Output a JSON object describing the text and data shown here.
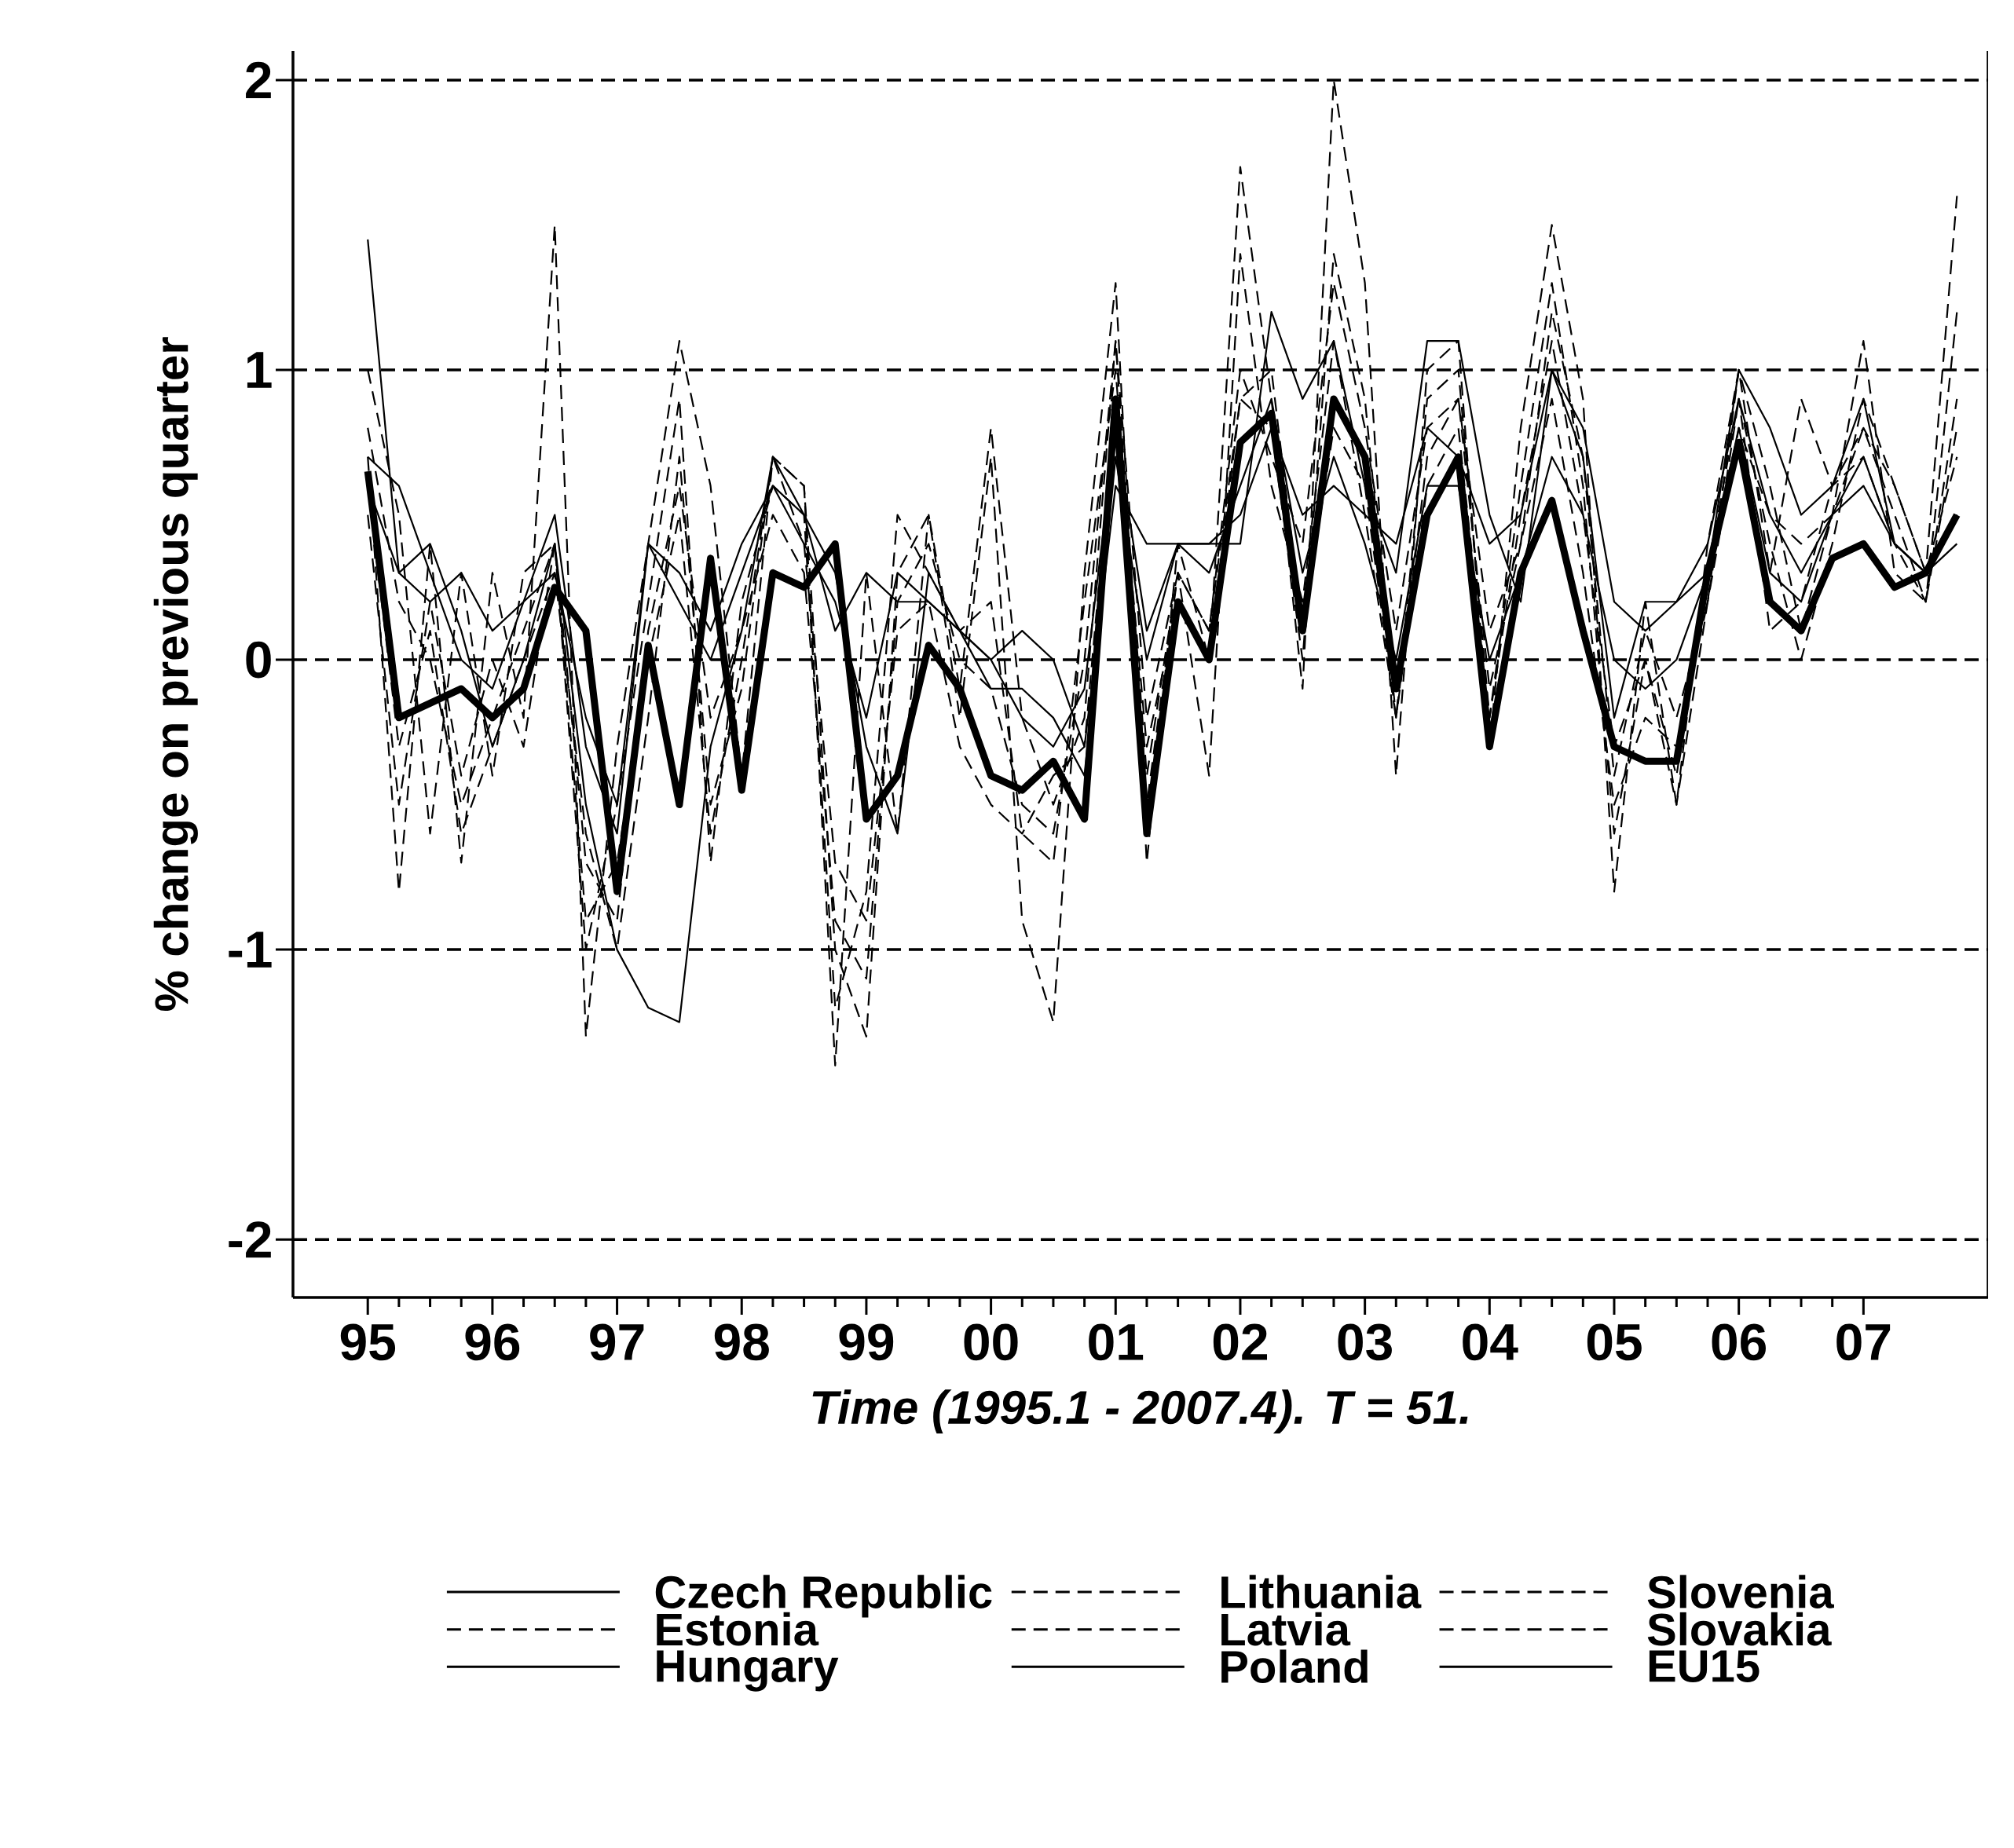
{
  "chart_data": {
    "type": "line",
    "xlabel": "Time (1995.1 - 2007.4). T = 51.",
    "ylabel": "% change on previous quarter",
    "x": [
      1995,
      1995.25,
      1995.5,
      1995.75,
      1996,
      1996.25,
      1996.5,
      1996.75,
      1997,
      1997.25,
      1997.5,
      1997.75,
      1998,
      1998.25,
      1998.5,
      1998.75,
      1999,
      1999.25,
      1999.5,
      1999.75,
      2000,
      2000.25,
      2000.5,
      2000.75,
      2001,
      2001.25,
      2001.5,
      2001.75,
      2002,
      2002.25,
      2002.5,
      2002.75,
      2003,
      2003.25,
      2003.5,
      2003.75,
      2004,
      2004.25,
      2004.5,
      2004.75,
      2005,
      2005.25,
      2005.5,
      2005.75,
      2006,
      2006.25,
      2006.5,
      2006.75,
      2007,
      2007.25,
      2007.5,
      2007.75
    ],
    "xlim": [
      1994.4,
      2008.0
    ],
    "xticks": [
      {
        "value": 1995,
        "label": "95"
      },
      {
        "value": 1996,
        "label": "96"
      },
      {
        "value": 1997,
        "label": "97"
      },
      {
        "value": 1998,
        "label": "98"
      },
      {
        "value": 1999,
        "label": "99"
      },
      {
        "value": 2000,
        "label": "00"
      },
      {
        "value": 2001,
        "label": "01"
      },
      {
        "value": 2002,
        "label": "02"
      },
      {
        "value": 2003,
        "label": "03"
      },
      {
        "value": 2004,
        "label": "04"
      },
      {
        "value": 2005,
        "label": "05"
      },
      {
        "value": 2006,
        "label": "06"
      },
      {
        "value": 2007,
        "label": "07"
      }
    ],
    "ylim": [
      -2.2,
      2.1
    ],
    "yticks": [
      -2,
      -1,
      0,
      1,
      2
    ],
    "grid": "y",
    "legend": "bottom",
    "series": [
      {
        "name": "Czech Republic",
        "color": "#000000",
        "line_style": "solid",
        "values": [
          1.45,
          0.3,
          0.4,
          0.1,
          -0.3,
          0.0,
          0.4,
          -0.5,
          -1.0,
          -1.2,
          -1.25,
          -0.3,
          0.1,
          0.7,
          0.5,
          0.3,
          -0.3,
          -0.6,
          0.3,
          0.1,
          0.0,
          -0.2,
          -0.3,
          -0.1,
          0.8,
          0.1,
          0.4,
          0.4,
          0.4,
          1.2,
          0.9,
          1.1,
          0.6,
          0.3,
          1.1,
          1.1,
          0.5,
          0.2,
          1.0,
          0.7,
          -0.2,
          0.2,
          0.2,
          0.3,
          1.0,
          0.8,
          0.5,
          0.6,
          0.9,
          0.4,
          0.3,
          0.5
        ]
      },
      {
        "name": "Estonia",
        "color": "#000000",
        "line_style": "dashed",
        "values": [
          0.7,
          -0.8,
          0.4,
          -0.7,
          0.3,
          -0.2,
          1.5,
          -1.3,
          -0.3,
          0.4,
          1.1,
          0.6,
          -0.4,
          0.7,
          0.6,
          -1.4,
          0.3,
          -0.6,
          0.5,
          -0.2,
          0.7,
          -0.9,
          -1.25,
          0.3,
          1.3,
          -0.7,
          0.4,
          0.0,
          1.7,
          0.9,
          -0.1,
          2.0,
          1.3,
          -0.4,
          1.0,
          1.1,
          -0.3,
          0.8,
          1.5,
          0.9,
          -0.8,
          0.2,
          -0.5,
          0.4,
          1.0,
          0.3,
          0.9,
          0.6,
          0.8,
          0.6,
          0.3,
          1.6
        ]
      },
      {
        "name": "Hungary",
        "color": "#000000",
        "line_style": "solid",
        "values": [
          0.6,
          0.3,
          0.2,
          0.3,
          0.1,
          0.2,
          0.5,
          -0.3,
          -0.6,
          0.4,
          0.3,
          0.1,
          0.4,
          0.6,
          0.5,
          0.1,
          0.3,
          0.2,
          0.2,
          0.1,
          0.0,
          0.1,
          0.0,
          -0.3,
          0.6,
          0.4,
          0.4,
          0.4,
          0.5,
          0.8,
          0.5,
          0.6,
          0.5,
          0.4,
          0.8,
          0.7,
          0.4,
          0.5,
          1.0,
          0.8,
          0.2,
          0.1,
          0.2,
          0.4,
          0.9,
          0.5,
          0.3,
          0.5,
          0.6,
          0.4,
          0.3,
          0.4
        ]
      },
      {
        "name": "Lithuania",
        "color": "#000000",
        "line_style": "dashed",
        "values": [
          1.0,
          0.5,
          -0.6,
          0.3,
          -0.4,
          0.3,
          0.4,
          -1.0,
          -0.5,
          0.2,
          0.9,
          -0.7,
          0.2,
          0.6,
          0.5,
          -1.2,
          -0.8,
          0.5,
          0.3,
          0.1,
          0.2,
          -0.6,
          -0.7,
          0.2,
          1.0,
          -0.4,
          0.3,
          -0.4,
          1.4,
          0.6,
          0.2,
          1.1,
          0.5,
          -0.2,
          0.9,
          1.0,
          -0.2,
          0.6,
          1.3,
          0.6,
          -0.6,
          0.0,
          -0.4,
          0.3,
          0.9,
          0.1,
          0.2,
          0.6,
          0.7,
          0.4,
          0.2,
          1.2
        ]
      },
      {
        "name": "Latvia",
        "color": "#000000",
        "line_style": "dashed",
        "values": [
          0.8,
          0.2,
          0.0,
          -0.5,
          -0.2,
          0.1,
          0.4,
          -0.7,
          -0.9,
          0.1,
          0.6,
          -0.2,
          0.1,
          0.5,
          0.3,
          -0.9,
          -1.1,
          0.2,
          0.4,
          0.0,
          -0.1,
          -0.5,
          -0.6,
          0.0,
          1.1,
          -0.2,
          0.3,
          0.1,
          1.0,
          0.7,
          0.4,
          1.3,
          0.8,
          0.1,
          0.8,
          0.9,
          0.1,
          0.4,
          1.2,
          0.7,
          -0.4,
          0.1,
          -0.2,
          0.2,
          0.8,
          0.5,
          0.4,
          0.5,
          0.8,
          0.5,
          0.2,
          0.9
        ]
      },
      {
        "name": "Poland",
        "color": "#000000",
        "line_style": "solid",
        "values": [
          0.7,
          0.6,
          0.3,
          0.0,
          -0.1,
          0.2,
          0.3,
          -0.2,
          -0.5,
          0.4,
          0.2,
          0.0,
          0.3,
          0.6,
          0.4,
          0.2,
          -0.2,
          0.3,
          0.2,
          0.1,
          -0.1,
          -0.1,
          -0.2,
          -0.4,
          0.7,
          0.0,
          0.4,
          0.3,
          0.6,
          0.9,
          0.3,
          0.7,
          0.4,
          0.0,
          0.6,
          0.6,
          0.0,
          0.3,
          0.7,
          0.5,
          0.0,
          -0.1,
          0.0,
          0.3,
          0.8,
          0.3,
          0.2,
          0.5,
          0.7,
          0.4,
          0.3,
          0.5
        ]
      },
      {
        "name": "Slovenia",
        "color": "#000000",
        "line_style": "dashed",
        "values": [
          0.5,
          -0.5,
          0.2,
          -0.4,
          0.0,
          -0.3,
          0.4,
          -0.9,
          -0.7,
          0.0,
          0.5,
          -0.6,
          0.0,
          0.7,
          0.4,
          -0.7,
          -0.9,
          0.1,
          0.2,
          -0.3,
          -0.5,
          -0.6,
          -0.4,
          -0.3,
          0.9,
          -0.3,
          0.2,
          0.0,
          0.9,
          1.0,
          0.1,
          0.8,
          0.6,
          -0.2,
          0.7,
          0.9,
          -0.1,
          0.4,
          0.9,
          0.3,
          -0.5,
          -0.2,
          -0.3,
          0.2,
          1.0,
          0.6,
          0.1,
          0.5,
          1.1,
          0.3,
          0.2,
          0.8
        ]
      },
      {
        "name": "Slovakia",
        "color": "#000000",
        "line_style": "dashed",
        "values": [
          0.6,
          -0.3,
          0.1,
          -0.6,
          -0.3,
          0.0,
          0.3,
          -0.6,
          -1.0,
          -0.2,
          0.7,
          -0.5,
          -0.1,
          0.7,
          0.6,
          -1.0,
          -1.3,
          0.3,
          0.5,
          -0.1,
          0.8,
          -0.2,
          -0.5,
          -0.2,
          1.1,
          -0.5,
          0.3,
          0.1,
          0.9,
          0.8,
          0.0,
          1.4,
          0.9,
          -0.2,
          0.6,
          0.8,
          -0.2,
          0.5,
          1.1,
          0.5,
          -0.3,
          0.0,
          -0.5,
          0.2,
          0.9,
          0.4,
          0.0,
          0.4,
          0.9,
          0.6,
          0.3,
          0.7
        ]
      },
      {
        "name": "EU15",
        "color": "#000000",
        "line_style": "solid",
        "values": [
          0.65,
          -0.2,
          -0.15,
          -0.1,
          -0.2,
          -0.1,
          0.25,
          0.1,
          -0.8,
          0.05,
          -0.5,
          0.35,
          -0.45,
          0.3,
          0.25,
          0.4,
          -0.55,
          -0.4,
          0.05,
          -0.1,
          -0.4,
          -0.45,
          -0.35,
          -0.55,
          0.9,
          -0.6,
          0.2,
          0.0,
          0.75,
          0.85,
          0.1,
          0.9,
          0.7,
          -0.1,
          0.5,
          0.7,
          -0.3,
          0.3,
          0.55,
          0.1,
          -0.3,
          -0.35,
          -0.35,
          0.3,
          0.75,
          0.2,
          0.1,
          0.35,
          0.4,
          0.25,
          0.3,
          0.5
        ]
      }
    ]
  }
}
